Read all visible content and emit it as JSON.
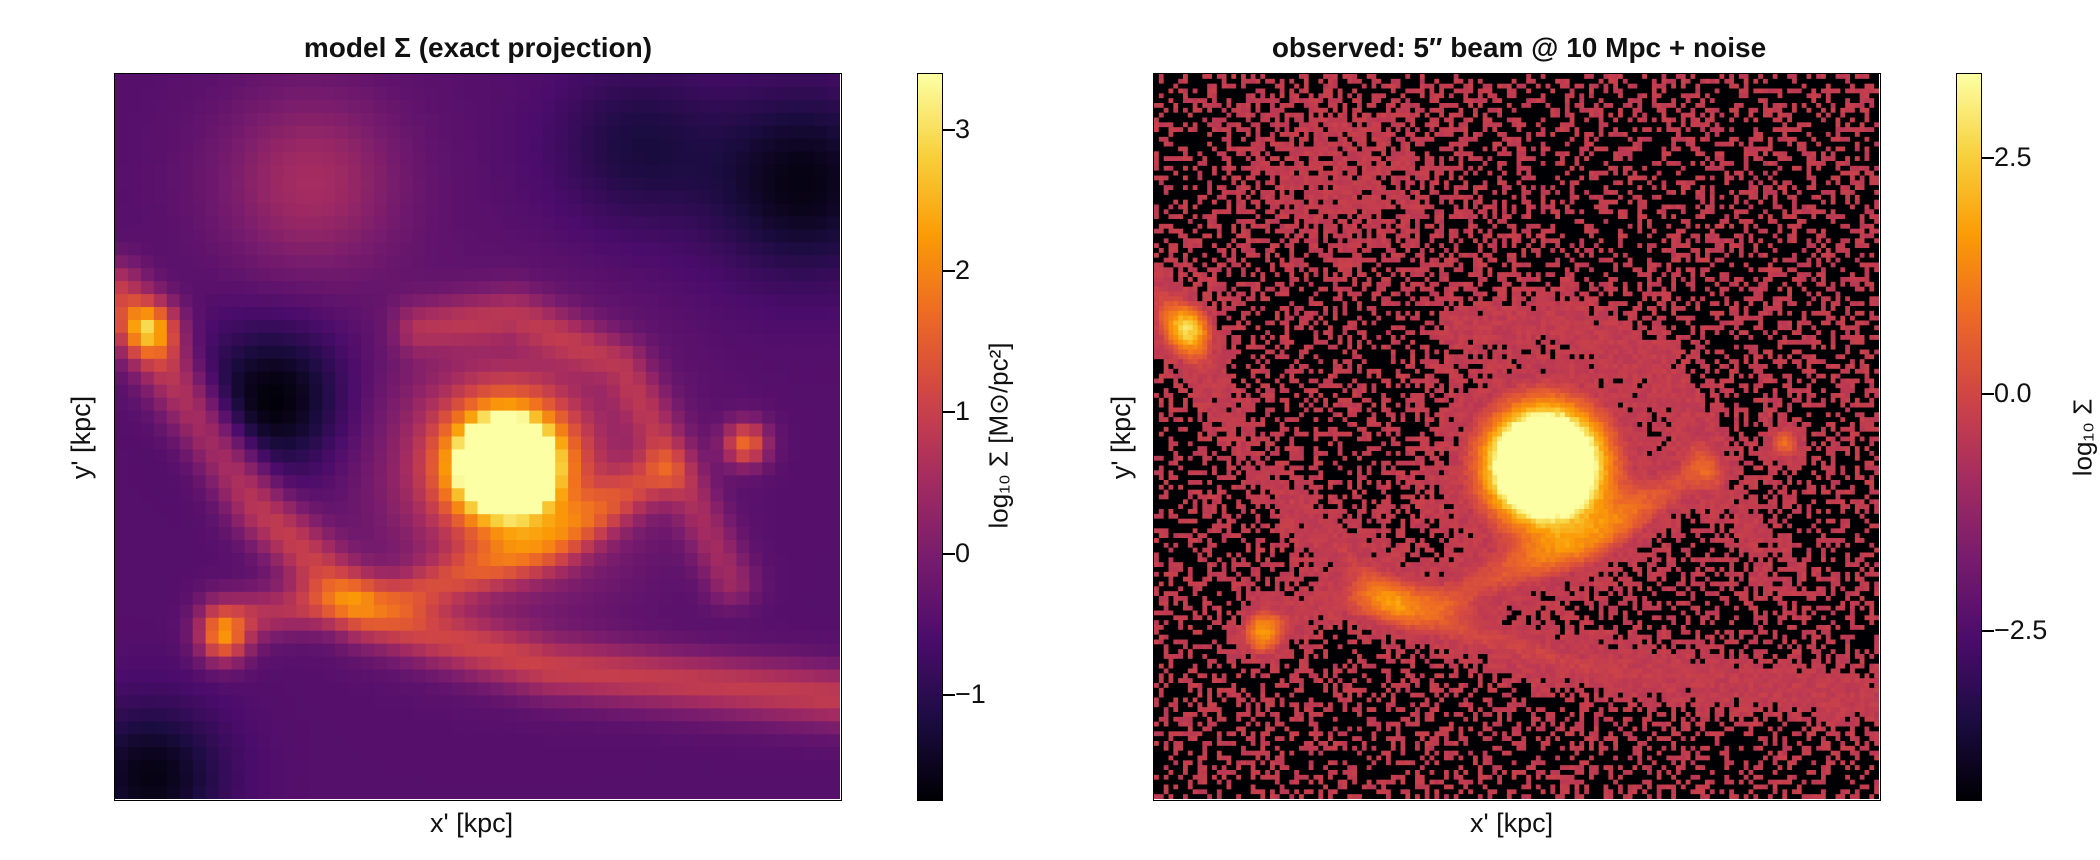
{
  "chart_data": [
    {
      "type": "heatmap",
      "title": "model Σ (exact projection)",
      "xlabel": "x' [kpc]",
      "ylabel": "y' [kpc]",
      "colormap": "inferno",
      "colorbar": {
        "label": "log₁₀ Σ [M⊙/pc²]",
        "range": [
          -1.75,
          3.4
        ],
        "ticks": [
          -1,
          0,
          1,
          2,
          3
        ],
        "tick_labels": [
          "−1",
          "0",
          "1",
          "2",
          "3"
        ]
      },
      "pixelation": "coarse",
      "grid": false
    },
    {
      "type": "heatmap",
      "title": "observed: 5″ beam @ 10 Mpc + noise",
      "xlabel": "x' [kpc]",
      "ylabel": "y' [kpc]",
      "colormap": "inferno",
      "colorbar": {
        "label": "log₁₀ Σ",
        "range": [
          -4.3,
          3.4
        ],
        "ticks": [
          -2.5,
          0.0,
          2.5
        ],
        "tick_labels": [
          "−2.5",
          "0.0",
          "2.5"
        ]
      },
      "pixelation": "fine, with noise",
      "grid": false
    }
  ]
}
